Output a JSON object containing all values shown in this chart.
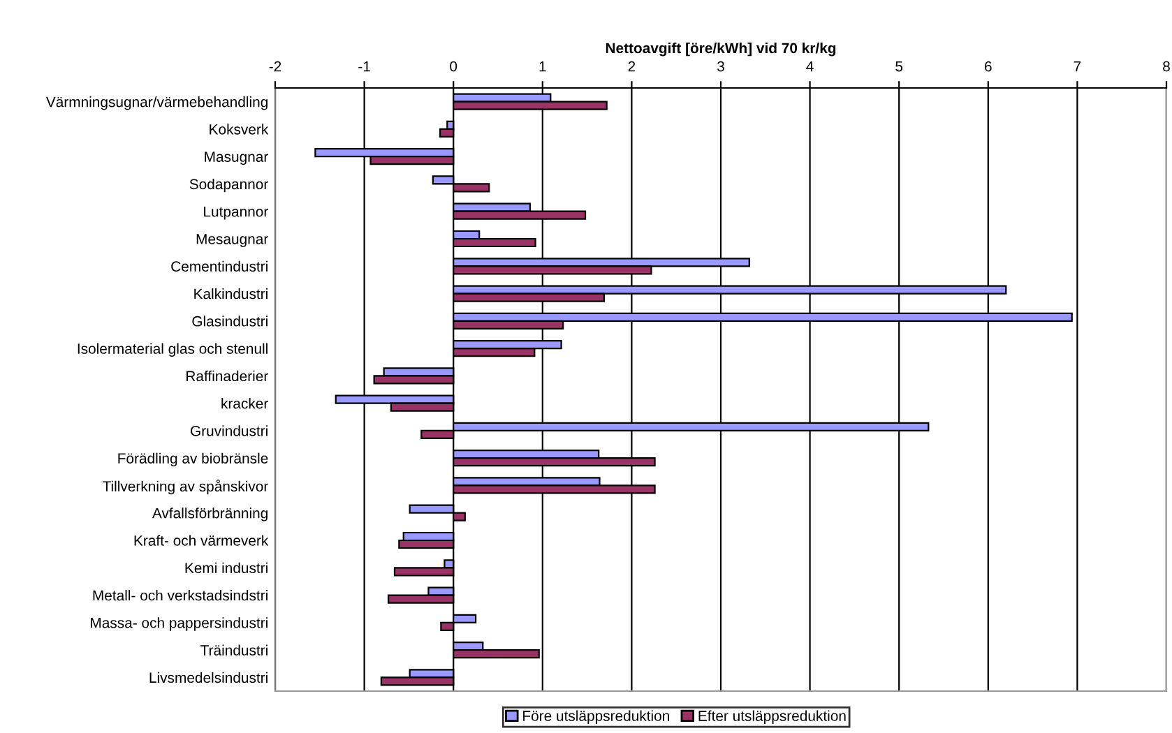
{
  "chart_data": {
    "type": "bar",
    "orientation": "horizontal",
    "xlabel": "Nettoavgift [öre/kWh] vid 70 kr/kg",
    "categories": [
      "Värmningsugnar/värmebehandling",
      "Koksverk",
      "Masugnar",
      "Sodapannor",
      "Lutpannor",
      "Mesaugnar",
      "Cementindustri",
      "Kalkindustri",
      "Glasindustri",
      "Isolermaterial glas och stenull",
      "Raffinaderier",
      "kracker",
      "Gruvindustri",
      "Förädling av biobränsle",
      "Tillverkning av spånskivor",
      "Avfallsförbränning",
      "Kraft- och värmeverk",
      "Kemi industri",
      "Metall- och verkstadsindstri",
      "Massa- och pappersindustri",
      "Träindustri",
      "Livsmedelsindustri"
    ],
    "series": [
      {
        "name": "Före utsläppsreduktion",
        "color": "#9999ff",
        "values": [
          1.09,
          -0.07,
          -1.55,
          -0.23,
          0.86,
          0.29,
          3.32,
          6.2,
          6.94,
          1.21,
          -0.78,
          -1.32,
          5.33,
          1.63,
          1.64,
          -0.49,
          -0.56,
          -0.1,
          -0.28,
          0.25,
          0.33,
          -0.49
        ]
      },
      {
        "name": "Efter utsläppsreduktion",
        "color": "#993366",
        "values": [
          1.72,
          -0.15,
          -0.93,
          0.4,
          1.48,
          0.92,
          2.22,
          1.69,
          1.23,
          0.91,
          -0.89,
          -0.7,
          -0.36,
          2.26,
          2.26,
          0.13,
          -0.61,
          -0.66,
          -0.73,
          -0.14,
          0.96,
          -0.81
        ]
      }
    ],
    "xlim": [
      -2,
      8
    ],
    "xticks": [
      -2,
      -1,
      0,
      1,
      2,
      3,
      4,
      5,
      6,
      7,
      8
    ],
    "grid": "x",
    "legend": "bottom"
  }
}
